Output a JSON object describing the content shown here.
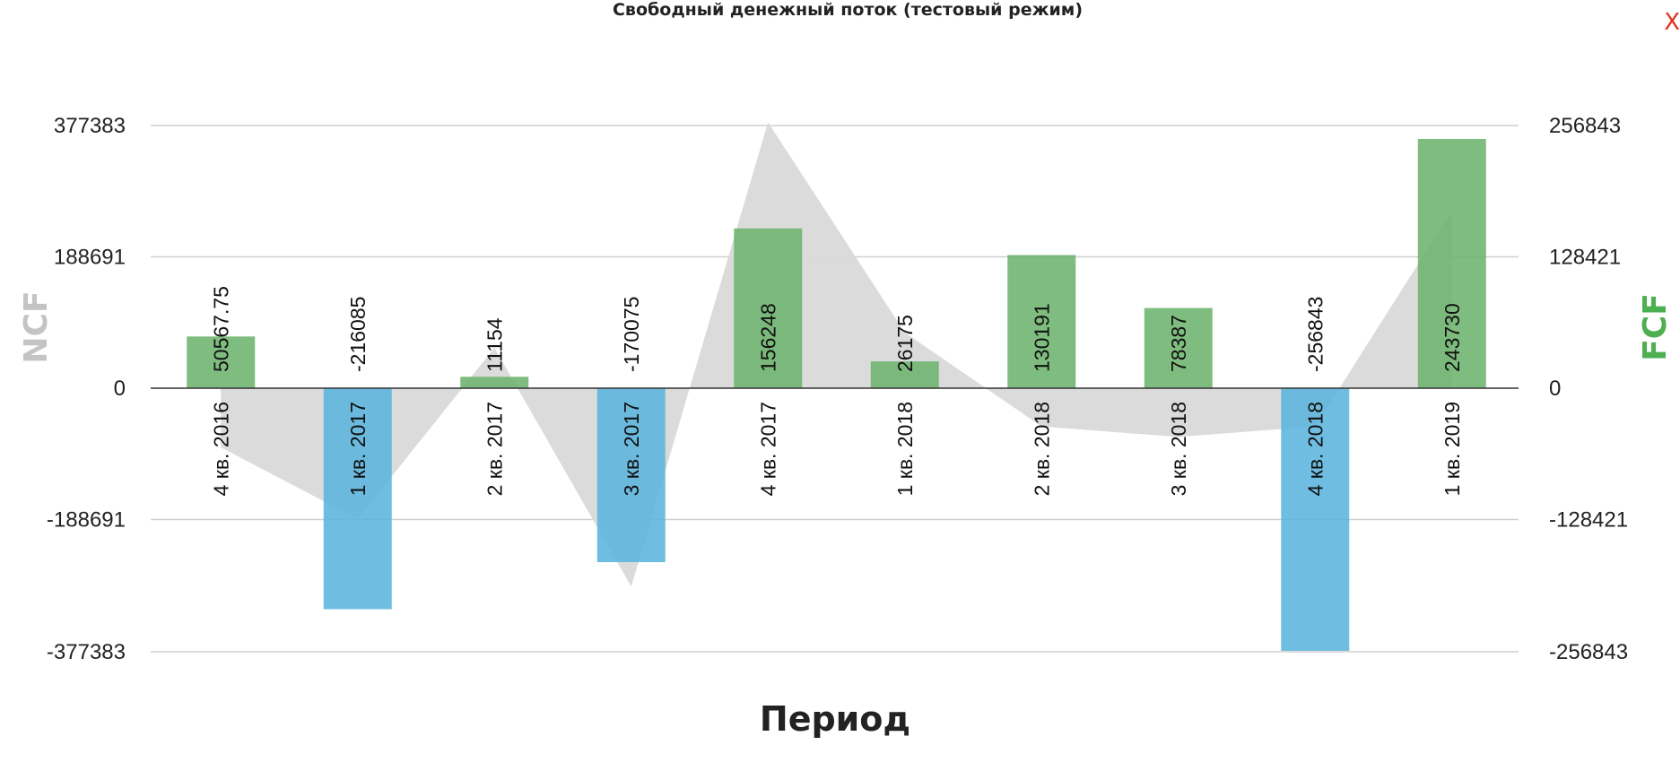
{
  "title": "Свободный денежный поток (тестовый режим)",
  "close_label": "X",
  "chart_data": {
    "type": "bar",
    "categories": [
      "4 кв. 2016",
      "1 кв. 2017",
      "2 кв. 2017",
      "3 кв. 2017",
      "4 кв. 2017",
      "1 кв. 2018",
      "2 кв. 2018",
      "3 кв. 2018",
      "4 кв. 2018",
      "1 кв. 2019"
    ],
    "xlabel": "Период",
    "ylabel_left": "NCF",
    "ylabel_right": "FCF",
    "ylim_left": [
      -377383,
      377383
    ],
    "ylim_right": [
      -256843,
      256843
    ],
    "yticks_left": [
      "377383",
      "188691",
      "0",
      "-188691",
      "-377383"
    ],
    "yticks_right": [
      "256843",
      "128421",
      "0",
      "-128421",
      "-256843"
    ],
    "grid": true,
    "series": [
      {
        "axis": "right",
        "kind": "bar",
        "values": [
          50567.75,
          -216085,
          11154,
          -170075,
          156248,
          26175,
          130191,
          78387,
          -256843,
          243730
        ],
        "labels": [
          "50567.75",
          "-216085",
          "11154",
          "-170075",
          "156248",
          "26175",
          "130191",
          "78387",
          "-256843",
          "243730"
        ]
      },
      {
        "axis": "left",
        "kind": "area",
        "values": [
          -85000,
          -188000,
          58000,
          -285000,
          382000,
          80000,
          -55000,
          -70000,
          -55000,
          255000
        ]
      }
    ],
    "colors": {
      "positive": "#6db36d",
      "negative": "#5bb5de",
      "area": "#d9d9d9",
      "ylabel_left": "#c4c4c4",
      "ylabel_right": "#4caf50"
    }
  }
}
